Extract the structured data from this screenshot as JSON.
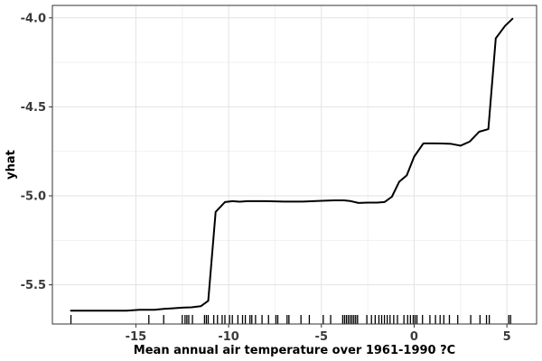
{
  "chart_data": {
    "type": "line",
    "title": "",
    "xlabel": "Mean annual air temperature over 1961-1990 ?C",
    "ylabel": "yhat",
    "xlim": [
      -19.5,
      6.6
    ],
    "ylim": [
      -5.72,
      -3.93
    ],
    "grid": true,
    "x_ticks": [
      -15,
      -10,
      -5,
      0,
      5
    ],
    "x_tick_labels": [
      "-15",
      "-10",
      "-5",
      "0",
      "5"
    ],
    "y_ticks": [
      -4.0,
      -4.5,
      -5.0,
      -5.5
    ],
    "y_tick_labels": [
      "-4.0",
      "-4.5",
      "-5.0",
      "-5.5"
    ],
    "series": [
      {
        "x": [
          -18.5,
          -17.5,
          -16.5,
          -15.5,
          -14.8,
          -14.0,
          -13.5,
          -13.0,
          -12.5,
          -12.0,
          -11.5,
          -11.1,
          -10.7,
          -10.2,
          -9.8,
          -9.4,
          -9.0,
          -8.0,
          -7.0,
          -6.0,
          -5.0,
          -4.3,
          -3.8,
          -3.4,
          -3.0,
          -2.5,
          -2.0,
          -1.6,
          -1.2,
          -0.8,
          -0.4,
          0.0,
          0.5,
          1.0,
          1.5,
          2.0,
          2.5,
          3.0,
          3.5,
          4.0,
          4.4,
          4.9,
          5.3
        ],
        "y": [
          -5.645,
          -5.645,
          -5.645,
          -5.645,
          -5.64,
          -5.64,
          -5.635,
          -5.632,
          -5.628,
          -5.626,
          -5.62,
          -5.59,
          -5.09,
          -5.035,
          -5.03,
          -5.033,
          -5.03,
          -5.03,
          -5.032,
          -5.032,
          -5.028,
          -5.025,
          -5.025,
          -5.03,
          -5.04,
          -5.038,
          -5.038,
          -5.035,
          -5.005,
          -4.92,
          -4.885,
          -4.78,
          -4.705,
          -4.705,
          -4.706,
          -4.708,
          -4.718,
          -4.695,
          -4.64,
          -4.625,
          -4.115,
          -4.045,
          -4.005
        ]
      }
    ],
    "rug": [
      -18.5,
      -14.3,
      -13.5,
      -12.5,
      -12.35,
      -12.25,
      -12.15,
      -11.95,
      -11.3,
      -11.2,
      -11.1,
      -10.8,
      -10.6,
      -10.35,
      -10.2,
      -9.95,
      -9.8,
      -9.5,
      -9.25,
      -9.1,
      -8.85,
      -8.75,
      -8.55,
      -8.2,
      -7.85,
      -7.45,
      -7.35,
      -6.85,
      -6.75,
      -6.1,
      -5.65,
      -4.9,
      -4.5,
      -3.85,
      -3.75,
      -3.65,
      -3.55,
      -3.45,
      -3.35,
      -3.25,
      -3.15,
      -3.05,
      -2.55,
      -2.3,
      -2.1,
      -1.9,
      -1.75,
      -1.6,
      -1.45,
      -1.3,
      -1.1,
      -0.9,
      -0.55,
      -0.35,
      -0.2,
      -0.05,
      0.05,
      0.15,
      0.45,
      0.85,
      1.15,
      1.4,
      1.6,
      1.9,
      2.35,
      3.05,
      3.55,
      3.9,
      4.05,
      5.1,
      5.2
    ]
  }
}
